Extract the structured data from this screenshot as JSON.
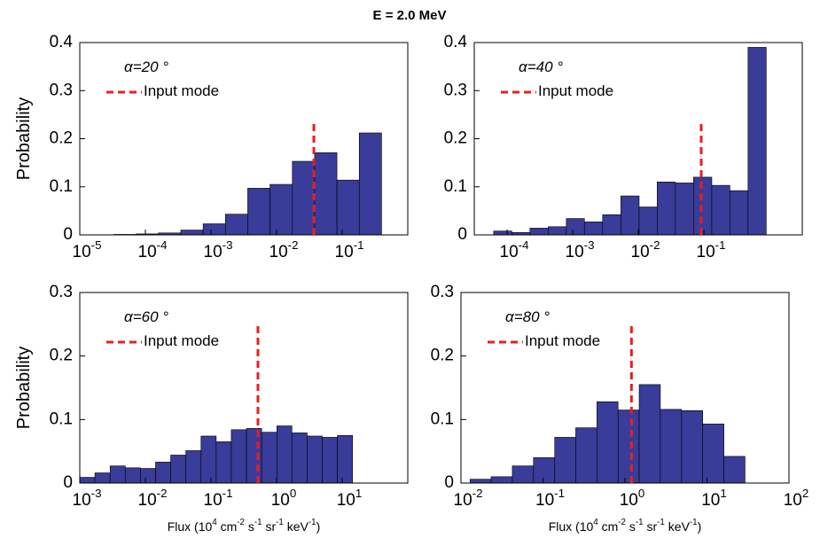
{
  "title": "E = 2.0 MeV",
  "chart_data": [
    {
      "type": "histogram",
      "xscale": "log",
      "grid": false,
      "color": "#393c98",
      "ylabel": "Probability",
      "annotation": "α=20 °",
      "bins": [
        3.31e-05,
        7.24e-05,
        0.000158,
        0.000347,
        0.000759,
        0.00166,
        0.00363,
        0.00794,
        0.0174,
        0.038,
        0.0832,
        0.182,
        0.398
      ],
      "values": [
        0.001,
        0.002,
        0.004,
        0.01,
        0.023,
        0.043,
        0.097,
        0.105,
        0.153,
        0.171,
        0.114,
        0.212
      ],
      "mode": {
        "name": "Input mode",
        "color": "#ee1c1c",
        "x": 0.037,
        "y": 0.235
      },
      "xlim": [
        1e-05,
        1
      ],
      "xticks": [
        {
          "value": 1e-05,
          "label": "10^-5"
        },
        {
          "value": 0.0001,
          "label": "10^-4"
        },
        {
          "value": 0.001,
          "label": "10^-3"
        },
        {
          "value": 0.01,
          "label": "10^-2"
        },
        {
          "value": 0.1,
          "label": "10^-1"
        }
      ],
      "ylim": [
        0,
        0.4
      ],
      "yticks": [
        0,
        0.1,
        0.2,
        0.3,
        0.4
      ]
    },
    {
      "type": "histogram",
      "xscale": "log",
      "grid": false,
      "color": "#393c98",
      "annotation": "α=40 °",
      "bins": [
        6.24e-05,
        0.000118,
        0.000223,
        0.000423,
        0.0008,
        0.00151,
        0.00286,
        0.00542,
        0.0103,
        0.0194,
        0.0367,
        0.0695,
        0.132,
        0.249,
        0.471,
        0.891
      ],
      "values": [
        0.008,
        0.005,
        0.014,
        0.017,
        0.034,
        0.027,
        0.042,
        0.081,
        0.058,
        0.11,
        0.108,
        0.12,
        0.103,
        0.092,
        0.39
      ],
      "mode": {
        "name": "Input mode",
        "color": "#ee1c1c",
        "x": 0.091,
        "y": 0.235
      },
      "xlim": [
        3.16e-05,
        3.16
      ],
      "xticks": [
        {
          "value": 0.0001,
          "label": "10^-4"
        },
        {
          "value": 0.001,
          "label": "10^-3"
        },
        {
          "value": 0.01,
          "label": "10^-2"
        },
        {
          "value": 0.1,
          "label": "10^-1"
        }
      ],
      "ylim": [
        0,
        0.4
      ],
      "yticks": [
        0,
        0.1,
        0.2,
        0.3,
        0.4
      ]
    },
    {
      "type": "histogram",
      "xscale": "log",
      "grid": false,
      "color": "#393c98",
      "ylabel": "Probability",
      "xlabel": "Flux (10^4 cm^-2 s^-1 sr^-1 keV^-1)",
      "annotation": "α=60 °",
      "bins": [
        0.001,
        0.0017,
        0.0029,
        0.00493,
        0.00839,
        0.0143,
        0.0243,
        0.0414,
        0.0705,
        0.12,
        0.204,
        0.348,
        0.592,
        1.01,
        1.71,
        2.92,
        4.97,
        8.45,
        14.4
      ],
      "values": [
        0.009,
        0.016,
        0.027,
        0.024,
        0.023,
        0.033,
        0.044,
        0.051,
        0.074,
        0.065,
        0.084,
        0.086,
        0.08,
        0.09,
        0.079,
        0.074,
        0.072,
        0.075
      ],
      "mode": {
        "name": "Input mode",
        "color": "#ee1c1c",
        "x": 0.52,
        "y": 0.25
      },
      "xlim": [
        0.001,
        100
      ],
      "xticks": [
        {
          "value": 0.001,
          "label": "10^-3"
        },
        {
          "value": 0.01,
          "label": "10^-2"
        },
        {
          "value": 0.1,
          "label": "10^-1"
        },
        {
          "value": 1,
          "label": "10^0"
        },
        {
          "value": 10,
          "label": "10^1"
        }
      ],
      "ylim": [
        0,
        0.3
      ],
      "yticks": [
        0,
        0.1,
        0.2,
        0.3
      ]
    },
    {
      "type": "histogram",
      "xscale": "log",
      "grid": false,
      "color": "#393c98",
      "xlabel": "Flux (10^4 cm^-2 s^-1 sr^-1 keV^-1)",
      "annotation": "α=80 °",
      "bins": [
        0.0129,
        0.0233,
        0.0423,
        0.0766,
        0.139,
        0.251,
        0.455,
        0.824,
        1.49,
        2.7,
        4.9,
        8.87,
        16.1,
        29.1
      ],
      "values": [
        0.006,
        0.01,
        0.027,
        0.04,
        0.072,
        0.087,
        0.128,
        0.115,
        0.155,
        0.116,
        0.114,
        0.093,
        0.042
      ],
      "mode": {
        "name": "Input mode",
        "color": "#ee1c1c",
        "x": 1.2,
        "y": 0.25
      },
      "xlim": [
        0.01,
        100
      ],
      "xticks": [
        {
          "value": 0.01,
          "label": "10^-2"
        },
        {
          "value": 0.1,
          "label": "10^-1"
        },
        {
          "value": 1,
          "label": "10^0"
        },
        {
          "value": 10,
          "label": "10^1"
        },
        {
          "value": 100,
          "label": "10^2"
        }
      ],
      "ylim": [
        0,
        0.3
      ],
      "yticks": [
        0,
        0.1,
        0.2,
        0.3
      ]
    }
  ]
}
